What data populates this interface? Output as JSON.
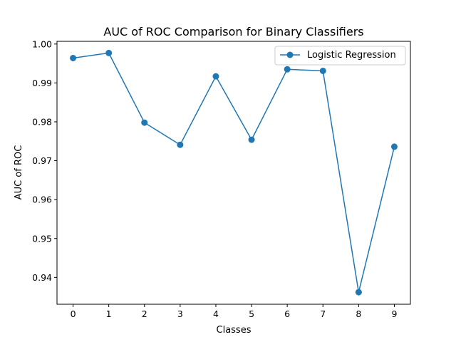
{
  "chart_data": {
    "type": "line",
    "title": "AUC of ROC Comparison for Binary Classifiers",
    "xlabel": "Classes",
    "ylabel": "AUC of ROC",
    "categories": [
      "0",
      "1",
      "2",
      "3",
      "4",
      "5",
      "6",
      "7",
      "8",
      "9"
    ],
    "x": [
      0,
      1,
      2,
      3,
      4,
      5,
      6,
      7,
      8,
      9
    ],
    "series": [
      {
        "name": "Logistic Regression",
        "color": "#1f77b4",
        "marker": "circle",
        "values": [
          0.9964,
          0.9977,
          0.9798,
          0.9741,
          0.9917,
          0.9754,
          0.9935,
          0.9931,
          0.9362,
          0.9736
        ]
      }
    ],
    "xlim": [
      -0.45,
      9.45
    ],
    "ylim": [
      0.9331,
      1.0007
    ],
    "yticks": [
      0.94,
      0.95,
      0.96,
      0.97,
      0.98,
      0.99,
      1.0
    ],
    "ytick_labels": [
      "0.94",
      "0.95",
      "0.96",
      "0.97",
      "0.98",
      "0.99",
      "1.00"
    ],
    "grid": false,
    "legend_position": "upper right"
  }
}
